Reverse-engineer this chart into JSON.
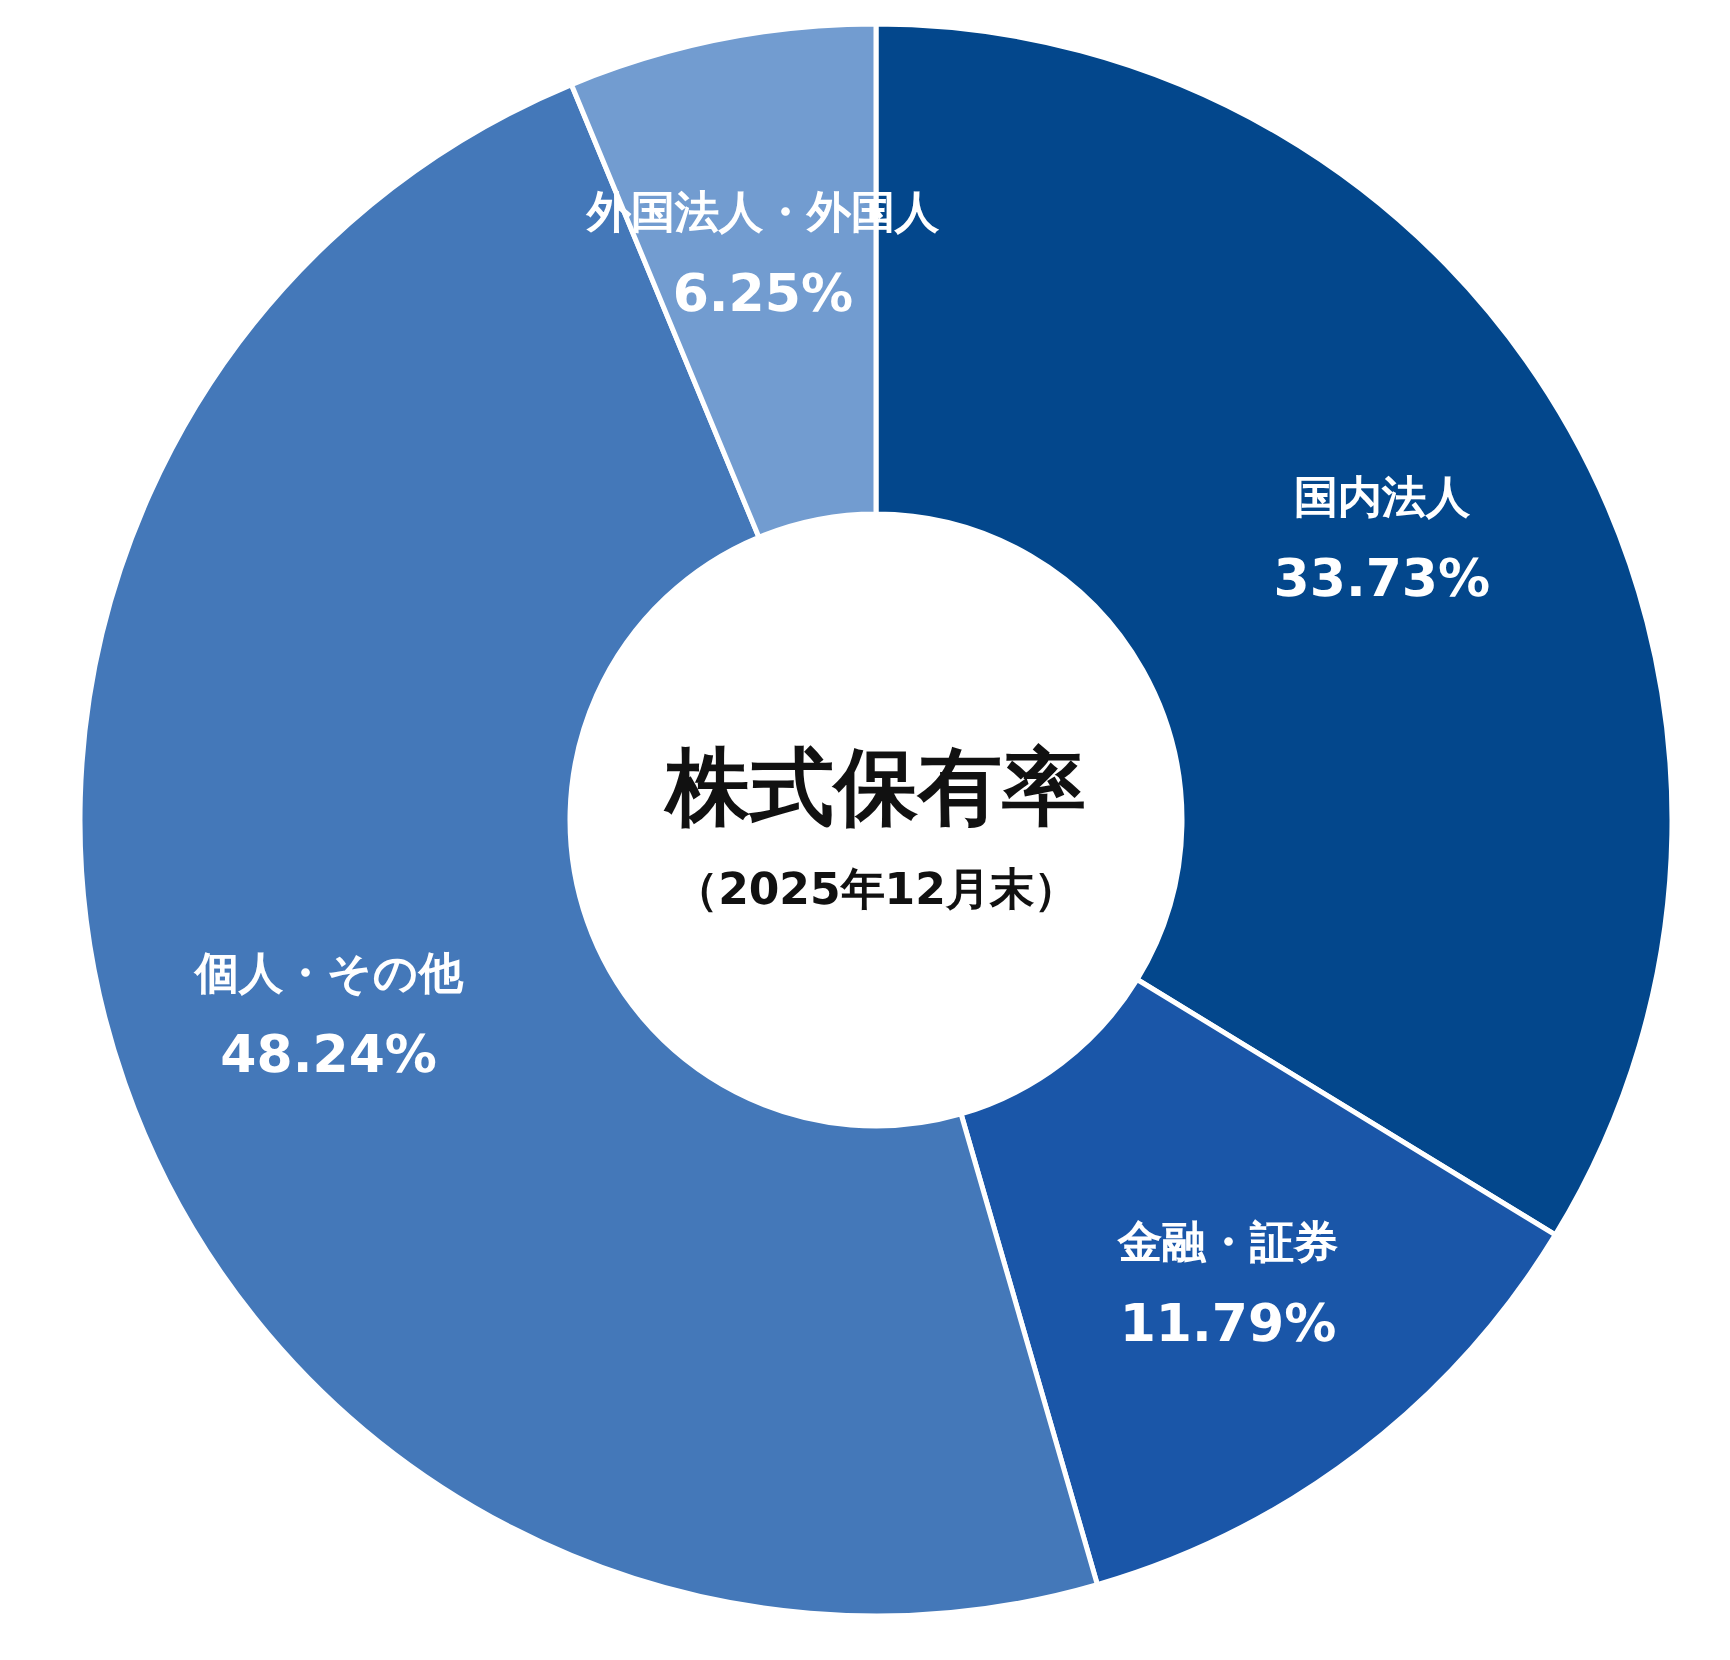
{
  "chart_data": {
    "type": "donut",
    "title": "株式保有率",
    "subtitle": "（2025年12月末）",
    "categories": [
      "国内法人",
      "金融・証券",
      "個人・その他",
      "外国法人・外国人"
    ],
    "values": [
      33.73,
      11.79,
      48.24,
      6.25
    ],
    "value_labels": [
      "33.73%",
      "11.79%",
      "48.24%",
      "6.25%"
    ],
    "colors": [
      "#03478c",
      "#1a56a8",
      "#4478b9",
      "#729cd0"
    ]
  }
}
